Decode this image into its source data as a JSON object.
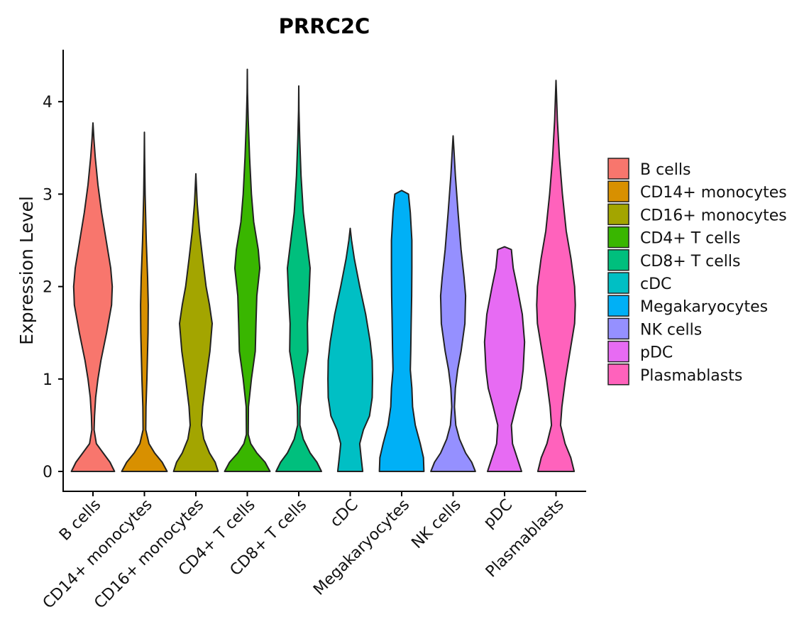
{
  "chart_data": {
    "type": "violin",
    "title": "PRRC2C",
    "xlabel": "",
    "ylabel": "Expression Level",
    "ylim": [
      0,
      4.5
    ],
    "yticks": [
      0,
      1,
      2,
      3,
      4
    ],
    "categories": [
      "B cells",
      "CD14+ monocytes",
      "CD16+ monocytes",
      "CD4+ T cells",
      "CD8+ T cells",
      "cDC",
      "Megakaryocytes",
      "NK cells",
      "pDC",
      "Plasmablasts"
    ],
    "colors": [
      "#F8766D",
      "#D89000",
      "#A3A500",
      "#39B600",
      "#00BF7D",
      "#00BFC4",
      "#00B0F6",
      "#9590FF",
      "#E76BF3",
      "#FF62BC"
    ],
    "legend_position": "right",
    "series": [
      {
        "name": "B cells",
        "max": 3.77,
        "density": [
          [
            0,
            0.95
          ],
          [
            0.1,
            0.75
          ],
          [
            0.2,
            0.45
          ],
          [
            0.3,
            0.15
          ],
          [
            0.45,
            0.05
          ],
          [
            0.6,
            0.07
          ],
          [
            0.8,
            0.12
          ],
          [
            1.0,
            0.22
          ],
          [
            1.2,
            0.35
          ],
          [
            1.5,
            0.6
          ],
          [
            1.8,
            0.82
          ],
          [
            2.0,
            0.85
          ],
          [
            2.2,
            0.78
          ],
          [
            2.5,
            0.58
          ],
          [
            2.8,
            0.38
          ],
          [
            3.1,
            0.22
          ],
          [
            3.4,
            0.1
          ],
          [
            3.6,
            0.04
          ],
          [
            3.77,
            0
          ]
        ]
      },
      {
        "name": "CD14+ monocytes",
        "max": 3.67,
        "density": [
          [
            0,
            1.0
          ],
          [
            0.1,
            0.78
          ],
          [
            0.2,
            0.45
          ],
          [
            0.3,
            0.2
          ],
          [
            0.45,
            0.06
          ],
          [
            0.7,
            0.07
          ],
          [
            1.0,
            0.11
          ],
          [
            1.5,
            0.16
          ],
          [
            1.8,
            0.17
          ],
          [
            2.1,
            0.14
          ],
          [
            2.5,
            0.08
          ],
          [
            3.0,
            0.03
          ],
          [
            3.4,
            0.01
          ],
          [
            3.67,
            0
          ]
        ]
      },
      {
        "name": "CD16+ monocytes",
        "max": 3.22,
        "density": [
          [
            0,
            0.98
          ],
          [
            0.1,
            0.85
          ],
          [
            0.2,
            0.6
          ],
          [
            0.35,
            0.35
          ],
          [
            0.5,
            0.25
          ],
          [
            0.7,
            0.3
          ],
          [
            1.0,
            0.45
          ],
          [
            1.3,
            0.62
          ],
          [
            1.6,
            0.72
          ],
          [
            1.8,
            0.6
          ],
          [
            2.0,
            0.45
          ],
          [
            2.3,
            0.3
          ],
          [
            2.6,
            0.16
          ],
          [
            2.9,
            0.06
          ],
          [
            3.22,
            0
          ]
        ]
      },
      {
        "name": "CD4+ T cells",
        "max": 4.35,
        "density": [
          [
            0,
            1.0
          ],
          [
            0.1,
            0.78
          ],
          [
            0.2,
            0.42
          ],
          [
            0.3,
            0.15
          ],
          [
            0.4,
            0.04
          ],
          [
            0.7,
            0.05
          ],
          [
            1.0,
            0.18
          ],
          [
            1.3,
            0.35
          ],
          [
            1.6,
            0.38
          ],
          [
            1.9,
            0.42
          ],
          [
            2.2,
            0.55
          ],
          [
            2.4,
            0.48
          ],
          [
            2.7,
            0.28
          ],
          [
            3.0,
            0.18
          ],
          [
            3.4,
            0.1
          ],
          [
            3.8,
            0.04
          ],
          [
            4.1,
            0.01
          ],
          [
            4.35,
            0
          ]
        ]
      },
      {
        "name": "CD8+ T cells",
        "max": 4.17,
        "density": [
          [
            0,
            1.0
          ],
          [
            0.1,
            0.8
          ],
          [
            0.2,
            0.5
          ],
          [
            0.35,
            0.2
          ],
          [
            0.5,
            0.05
          ],
          [
            0.7,
            0.06
          ],
          [
            1.0,
            0.2
          ],
          [
            1.3,
            0.4
          ],
          [
            1.6,
            0.38
          ],
          [
            1.9,
            0.45
          ],
          [
            2.2,
            0.5
          ],
          [
            2.5,
            0.35
          ],
          [
            2.8,
            0.2
          ],
          [
            3.2,
            0.1
          ],
          [
            3.6,
            0.04
          ],
          [
            3.9,
            0.01
          ],
          [
            4.17,
            0
          ]
        ]
      },
      {
        "name": "cDC",
        "max": 2.63,
        "density": [
          [
            0,
            0.55
          ],
          [
            0.15,
            0.48
          ],
          [
            0.3,
            0.42
          ],
          [
            0.45,
            0.58
          ],
          [
            0.6,
            0.85
          ],
          [
            0.8,
            0.97
          ],
          [
            1.0,
            0.98
          ],
          [
            1.2,
            0.97
          ],
          [
            1.4,
            0.88
          ],
          [
            1.7,
            0.68
          ],
          [
            2.0,
            0.42
          ],
          [
            2.3,
            0.18
          ],
          [
            2.5,
            0.06
          ],
          [
            2.63,
            0
          ]
        ]
      },
      {
        "name": "Megakaryocytes",
        "max": 3.04,
        "density": [
          [
            0,
            0.98
          ],
          [
            0.15,
            0.96
          ],
          [
            0.3,
            0.82
          ],
          [
            0.5,
            0.6
          ],
          [
            0.7,
            0.48
          ],
          [
            0.9,
            0.45
          ],
          [
            1.1,
            0.38
          ],
          [
            1.3,
            0.4
          ],
          [
            1.6,
            0.42
          ],
          [
            1.9,
            0.44
          ],
          [
            2.2,
            0.45
          ],
          [
            2.5,
            0.45
          ],
          [
            2.8,
            0.38
          ],
          [
            3.0,
            0.3
          ],
          [
            3.04,
            0
          ]
        ]
      },
      {
        "name": "NK cells",
        "max": 3.63,
        "density": [
          [
            0,
            0.98
          ],
          [
            0.1,
            0.82
          ],
          [
            0.2,
            0.55
          ],
          [
            0.35,
            0.28
          ],
          [
            0.5,
            0.12
          ],
          [
            0.7,
            0.06
          ],
          [
            0.9,
            0.1
          ],
          [
            1.1,
            0.2
          ],
          [
            1.3,
            0.35
          ],
          [
            1.6,
            0.52
          ],
          [
            1.9,
            0.55
          ],
          [
            2.1,
            0.48
          ],
          [
            2.4,
            0.35
          ],
          [
            2.8,
            0.22
          ],
          [
            3.2,
            0.1
          ],
          [
            3.5,
            0.03
          ],
          [
            3.63,
            0
          ]
        ]
      },
      {
        "name": "pDC",
        "max": 2.43,
        "density": [
          [
            0,
            0.75
          ],
          [
            0.15,
            0.55
          ],
          [
            0.3,
            0.35
          ],
          [
            0.5,
            0.3
          ],
          [
            0.7,
            0.5
          ],
          [
            0.9,
            0.72
          ],
          [
            1.1,
            0.82
          ],
          [
            1.4,
            0.88
          ],
          [
            1.7,
            0.78
          ],
          [
            2.0,
            0.55
          ],
          [
            2.2,
            0.38
          ],
          [
            2.4,
            0.3
          ],
          [
            2.43,
            0
          ]
        ]
      },
      {
        "name": "Plasmablasts",
        "max": 4.23,
        "density": [
          [
            0,
            0.8
          ],
          [
            0.15,
            0.65
          ],
          [
            0.3,
            0.4
          ],
          [
            0.5,
            0.2
          ],
          [
            0.7,
            0.26
          ],
          [
            1.0,
            0.42
          ],
          [
            1.3,
            0.62
          ],
          [
            1.6,
            0.82
          ],
          [
            1.8,
            0.85
          ],
          [
            2.0,
            0.82
          ],
          [
            2.3,
            0.66
          ],
          [
            2.6,
            0.45
          ],
          [
            3.0,
            0.28
          ],
          [
            3.4,
            0.15
          ],
          [
            3.8,
            0.06
          ],
          [
            4.1,
            0.02
          ],
          [
            4.23,
            0
          ]
        ]
      }
    ]
  }
}
